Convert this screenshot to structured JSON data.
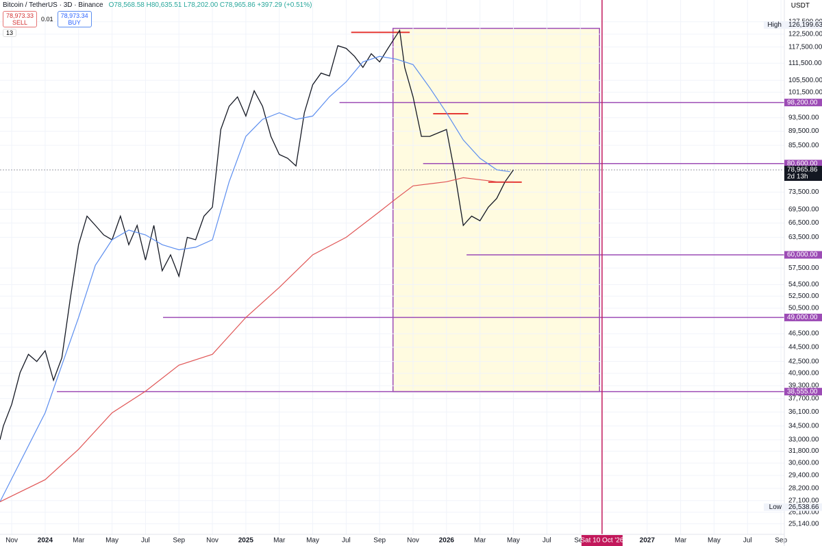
{
  "header": {
    "symbol": "Bitcoin / TetherUS · 3D · Binance",
    "ohlc": "O78,568.58 H80,635.51 L78,202.00 C78,965.86 +397.29 (+0.51%)",
    "sell_price": "78,973.33",
    "sell": "SELL",
    "quantity": "0.01",
    "buy_price": "78,973.34",
    "buy": "BUY",
    "indicator": "13",
    "currency": "USDT"
  },
  "chart_data": {
    "type": "line",
    "title": "Bitcoin / TetherUS · 3D · Binance",
    "log_scale": true,
    "grid": true,
    "xlim": [
      -2.7,
      44.2
    ],
    "ylim": [
      24300,
      136800
    ],
    "xticks": [
      {
        "value": -2,
        "label": "Nov"
      },
      {
        "value": 0,
        "label": "2024"
      },
      {
        "value": 2,
        "label": "Mar"
      },
      {
        "value": 4,
        "label": "May"
      },
      {
        "value": 6,
        "label": "Jul"
      },
      {
        "value": 8,
        "label": "Sep"
      },
      {
        "value": 10,
        "label": "Nov"
      },
      {
        "value": 12,
        "label": "2025"
      },
      {
        "value": 14,
        "label": "Mar"
      },
      {
        "value": 16,
        "label": "May"
      },
      {
        "value": 18,
        "label": "Jul"
      },
      {
        "value": 20,
        "label": "Sep"
      },
      {
        "value": 22,
        "label": "Nov"
      },
      {
        "value": 24,
        "label": "2026"
      },
      {
        "value": 26,
        "label": "Mar"
      },
      {
        "value": 28,
        "label": "May"
      },
      {
        "value": 30,
        "label": "Jul"
      },
      {
        "value": 32,
        "label": "Sep"
      },
      {
        "value": 36,
        "label": "2027"
      },
      {
        "value": 38,
        "label": "Mar"
      },
      {
        "value": 40,
        "label": "May"
      },
      {
        "value": 42,
        "label": "Jul"
      },
      {
        "value": 44,
        "label": "Sep"
      }
    ],
    "yticks": [
      {
        "value": 127500,
        "label": "127,500.00"
      },
      {
        "value": 122500,
        "label": "122,500.00"
      },
      {
        "value": 117500,
        "label": "117,500.00"
      },
      {
        "value": 111500,
        "label": "111,500.00"
      },
      {
        "value": 105500,
        "label": "105,500.00"
      },
      {
        "value": 101500,
        "label": "101,500.00"
      },
      {
        "value": 93500,
        "label": "93,500.00"
      },
      {
        "value": 89500,
        "label": "89,500.00"
      },
      {
        "value": 85500,
        "label": "85,500.00"
      },
      {
        "value": 73500,
        "label": "73,500.00"
      },
      {
        "value": 69500,
        "label": "69,500.00"
      },
      {
        "value": 66500,
        "label": "66,500.00"
      },
      {
        "value": 63500,
        "label": "63,500.00"
      },
      {
        "value": 57500,
        "label": "57,500.00"
      },
      {
        "value": 54500,
        "label": "54,500.00"
      },
      {
        "value": 52500,
        "label": "52,500.00"
      },
      {
        "value": 50500,
        "label": "50,500.00"
      },
      {
        "value": 46500,
        "label": "46,500.00"
      },
      {
        "value": 44500,
        "label": "44,500.00"
      },
      {
        "value": 42500,
        "label": "42,500.00"
      },
      {
        "value": 40900,
        "label": "40,900.00"
      },
      {
        "value": 39300,
        "label": "39,300.00"
      },
      {
        "value": 37700,
        "label": "37,700.00"
      },
      {
        "value": 36100,
        "label": "36,100.00"
      },
      {
        "value": 34500,
        "label": "34,500.00"
      },
      {
        "value": 33000,
        "label": "33,000.00"
      },
      {
        "value": 31800,
        "label": "31,800.00"
      },
      {
        "value": 30600,
        "label": "30,600.00"
      },
      {
        "value": 29400,
        "label": "29,400.00"
      },
      {
        "value": 28200,
        "label": "28,200.00"
      },
      {
        "value": 27100,
        "label": "27,100.00"
      },
      {
        "value": 26100,
        "label": "26,100.00"
      },
      {
        "value": 25140,
        "label": "25,140.00"
      }
    ],
    "series": [
      {
        "color": "#131722",
        "x": [
          -2.7,
          -2.5,
          -2,
          -1.5,
          -1,
          -0.5,
          0,
          0.5,
          1,
          1.5,
          2,
          2.5,
          3,
          3.5,
          4,
          4.5,
          5,
          5.5,
          6,
          6.5,
          7,
          7.5,
          8,
          8.5,
          9,
          9.5,
          10,
          10.5,
          11,
          11.5,
          12,
          12.5,
          13,
          13.5,
          14,
          14.5,
          15,
          15.5,
          16,
          16.5,
          17,
          17.5,
          18,
          18.5,
          19,
          19.5,
          20,
          20.5,
          21,
          21.2,
          21.5,
          22,
          22.5,
          23,
          23.5,
          24,
          24.5,
          25,
          25.5,
          26,
          26.5,
          27,
          27.5,
          28
        ],
        "values": [
          33000,
          34500,
          37000,
          41000,
          43500,
          42500,
          44000,
          40000,
          43000,
          52000,
          62000,
          68000,
          66000,
          64000,
          63000,
          68000,
          62000,
          66000,
          59000,
          66000,
          57000,
          60000,
          56000,
          63500,
          63000,
          68000,
          70000,
          90000,
          97000,
          100000,
          94000,
          102000,
          97000,
          88000,
          83000,
          82000,
          80000,
          95000,
          104000,
          108000,
          107000,
          118000,
          117000,
          114000,
          110000,
          115000,
          112000,
          117000,
          122000,
          124000,
          110000,
          100000,
          88000,
          88000,
          89000,
          90000,
          78000,
          66000,
          68000,
          67000,
          70000,
          72000,
          76000,
          78965.86
        ]
      },
      {
        "color": "#5b8def",
        "x": [
          -2.7,
          0,
          2,
          3,
          4,
          5,
          6,
          7,
          8,
          9,
          10,
          11,
          12,
          13,
          14,
          15,
          16,
          17,
          18,
          19,
          20,
          21,
          22,
          23,
          24,
          25,
          26,
          27,
          27.8
        ],
        "values": [
          27000,
          36000,
          49000,
          58000,
          63000,
          65000,
          64000,
          62000,
          61000,
          61500,
          63000,
          76000,
          88000,
          93000,
          95000,
          93000,
          94000,
          100000,
          105000,
          112000,
          114000,
          113000,
          111000,
          103000,
          95000,
          87000,
          82000,
          79000,
          78500
        ]
      },
      {
        "color": "#e05555",
        "x": [
          -2.7,
          0,
          2,
          4,
          6,
          8,
          10,
          12,
          14,
          16,
          18,
          20,
          21,
          22,
          24,
          25,
          27,
          28
        ],
        "values": [
          27000,
          29000,
          32000,
          36000,
          38600,
          42000,
          43500,
          49000,
          54000,
          60000,
          63500,
          69000,
          72000,
          75000,
          76000,
          77000,
          76000,
          76000
        ]
      }
    ],
    "level_color": "#9c4bb5",
    "levels": [
      {
        "value": 98200,
        "label": "98,200.00",
        "from": 17.6
      },
      {
        "value": 80600,
        "label": "80,600.00",
        "from": 22.6
      },
      {
        "value": 60000,
        "label": "60,000.00",
        "from": 25.2
      },
      {
        "value": 49000,
        "label": "49,000.00",
        "from": 7.05
      },
      {
        "value": 38555,
        "label": "38,555.00",
        "from": 0.7
      }
    ],
    "resistance_color": "#e53935",
    "resistance": [
      {
        "value": 123200,
        "from": 18.3,
        "to": 21.8
      },
      {
        "value": 94700,
        "from": 23.2,
        "to": 25.3
      },
      {
        "value": 75900,
        "from": 26.5,
        "to": 28.5
      }
    ],
    "zone": {
      "x": [
        20.8,
        33.15
      ],
      "y": [
        38555,
        124800
      ],
      "color": "#fffbe0"
    },
    "marker": {
      "x": 33.3,
      "label": "Sat 10 Oct '26",
      "color": "#c2185b"
    },
    "last_price": {
      "value": 78965.86,
      "label": "78,965.86",
      "countdown": "2d 13h"
    },
    "high": {
      "label": "High",
      "value": 126199.63,
      "value_label": "126,199.63"
    },
    "low": {
      "label": "Low",
      "value": 26538.66,
      "value_label": "26,538.66"
    }
  }
}
